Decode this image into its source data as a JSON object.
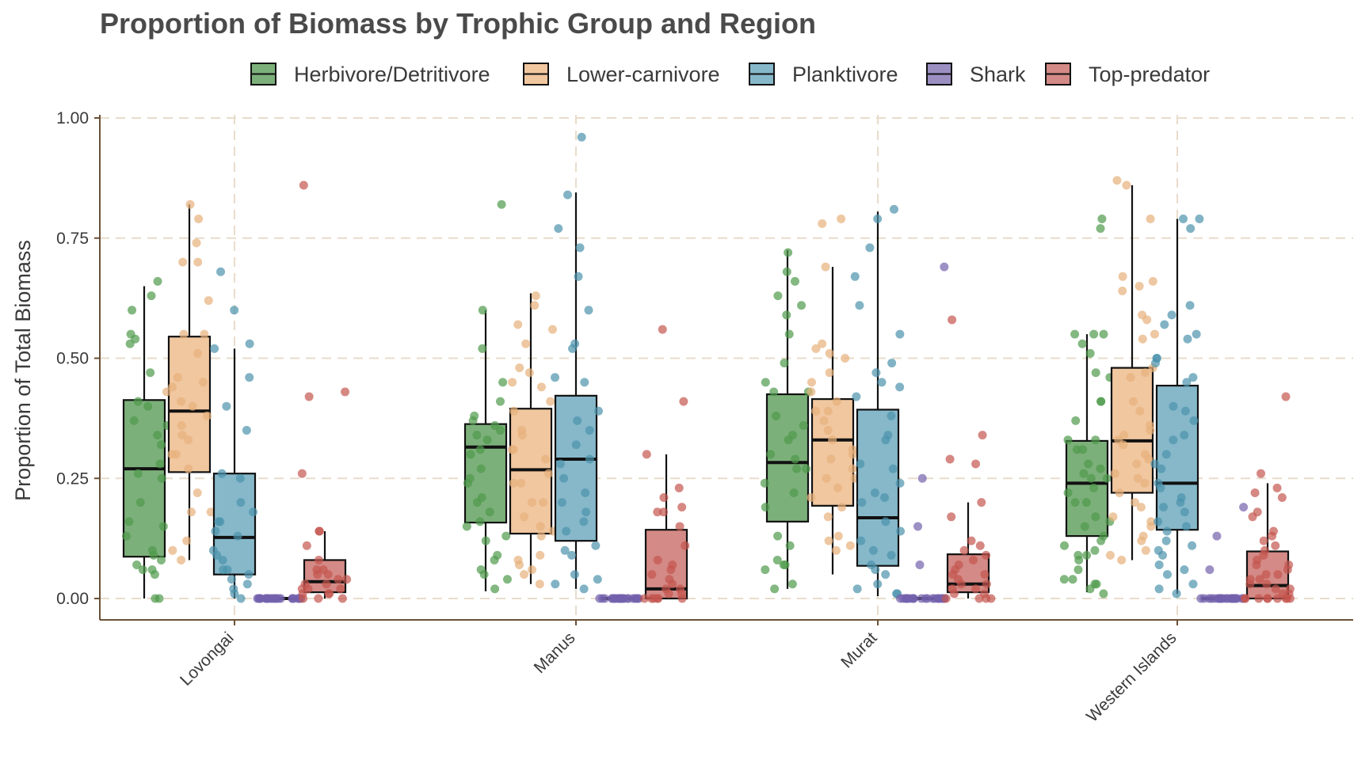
{
  "chart_data": {
    "type": "box",
    "title": "Proportion of Biomass by Trophic Group and Region",
    "xlabel": "",
    "ylabel": "Proportion of Total Biomass",
    "ylim": [
      -0.045,
      1.0
    ],
    "y_ticks": [
      "0.00",
      "0.25",
      "0.50",
      "0.75",
      "1.00"
    ],
    "y_tick_values": [
      0,
      0.25,
      0.5,
      0.75,
      1.0
    ],
    "categories": [
      "Lovongai",
      "Manus",
      "Murat",
      "Western Islands"
    ],
    "grid": true,
    "legend_position": "top",
    "series": [
      {
        "name": "Herbivore/Detritivore",
        "color": "#7cb07a",
        "point_color": "#4f9a4b",
        "boxes": [
          {
            "lower": 0.0,
            "q1": 0.087,
            "median": 0.27,
            "q3": 0.413,
            "upper": 0.65
          },
          {
            "lower": 0.015,
            "q1": 0.158,
            "median": 0.315,
            "q3": 0.363,
            "upper": 0.6
          },
          {
            "lower": 0.02,
            "q1": 0.16,
            "median": 0.283,
            "q3": 0.425,
            "upper": 0.725
          },
          {
            "lower": 0.013,
            "q1": 0.13,
            "median": 0.24,
            "q3": 0.328,
            "upper": 0.55
          }
        ],
        "points": [
          [
            0.63,
            0.54,
            0.47,
            0.36,
            0.1,
            0.06,
            0.16,
            0.25,
            0.09,
            0.0,
            0.0,
            0.07,
            0.66,
            0.53,
            0.4,
            0.6,
            0.55,
            0.34,
            0.32,
            0.28,
            0.13,
            0.06,
            0.05,
            0.41,
            0.37,
            0.26,
            0.15,
            0.08,
            0.2
          ],
          [
            0.52,
            0.35,
            0.3,
            0.25,
            0.2,
            0.16,
            0.12,
            0.04,
            0.05,
            0.09,
            0.37,
            0.6,
            0.45,
            0.41,
            0.34,
            0.33,
            0.82,
            0.36,
            0.24,
            0.18,
            0.15,
            0.08,
            0.06,
            0.02,
            0.38,
            0.31,
            0.27,
            0.21,
            0.13
          ],
          [
            0.49,
            0.45,
            0.38,
            0.3,
            0.29,
            0.24,
            0.13,
            0.08,
            0.07,
            0.02,
            0.61,
            0.59,
            0.55,
            0.36,
            0.34,
            0.27,
            0.19,
            0.11,
            0.07,
            0.72,
            0.66,
            0.63,
            0.68,
            0.43,
            0.43,
            0.33,
            0.27,
            0.03,
            0.06,
            0.22
          ],
          [
            0.55,
            0.53,
            0.41,
            0.33,
            0.31,
            0.27,
            0.16,
            0.09,
            0.04,
            0.02,
            0.03,
            0.55,
            0.51,
            0.47,
            0.33,
            0.25,
            0.22,
            0.2,
            0.15,
            0.12,
            0.06,
            0.01,
            0.55,
            0.41,
            0.31,
            0.26,
            0.11,
            0.08,
            0.03,
            0.79,
            0.77,
            0.46,
            0.25,
            0.13,
            0.09,
            0.04,
            0.37,
            0.28,
            0.23,
            0.17,
            0.1,
            0.2
          ]
        ]
      },
      {
        "name": "Lower-carnivore",
        "color": "#f1c7a0",
        "point_color": "#e7b07b",
        "boxes": [
          {
            "lower": 0.08,
            "q1": 0.263,
            "median": 0.39,
            "q3": 0.545,
            "upper": 0.82
          },
          {
            "lower": 0.03,
            "q1": 0.135,
            "median": 0.268,
            "q3": 0.395,
            "upper": 0.635
          },
          {
            "lower": 0.05,
            "q1": 0.193,
            "median": 0.33,
            "q3": 0.415,
            "upper": 0.69
          },
          {
            "lower": 0.08,
            "q1": 0.22,
            "median": 0.328,
            "q3": 0.48,
            "upper": 0.86
          }
        ],
        "points": [
          [
            0.74,
            0.62,
            0.51,
            0.44,
            0.4,
            0.3,
            0.22,
            0.12,
            0.08,
            0.7,
            0.7,
            0.55,
            0.46,
            0.36,
            0.3,
            0.18,
            0.18,
            0.79,
            0.82,
            0.55,
            0.45,
            0.41,
            0.33,
            0.27,
            0.1,
            0.38,
            0.34,
            0.43
          ],
          [
            0.63,
            0.53,
            0.45,
            0.39,
            0.31,
            0.24,
            0.2,
            0.15,
            0.09,
            0.05,
            0.57,
            0.47,
            0.41,
            0.34,
            0.31,
            0.26,
            0.17,
            0.14,
            0.08,
            0.07,
            0.61,
            0.56,
            0.48,
            0.44,
            0.35,
            0.29,
            0.24,
            0.2,
            0.13,
            0.06,
            0.03
          ],
          [
            0.79,
            0.78,
            0.52,
            0.5,
            0.43,
            0.39,
            0.33,
            0.29,
            0.25,
            0.19,
            0.13,
            0.1,
            0.69,
            0.51,
            0.47,
            0.41,
            0.37,
            0.31,
            0.27,
            0.23,
            0.17,
            0.11,
            0.53,
            0.45,
            0.39,
            0.35,
            0.3,
            0.25,
            0.21,
            0.12
          ],
          [
            0.86,
            0.87,
            0.79,
            0.67,
            0.66,
            0.59,
            0.55,
            0.47,
            0.46,
            0.39,
            0.35,
            0.32,
            0.3,
            0.28,
            0.25,
            0.2,
            0.17,
            0.15,
            0.13,
            0.09,
            0.65,
            0.64,
            0.58,
            0.54,
            0.48,
            0.41,
            0.36,
            0.33,
            0.26,
            0.22,
            0.16,
            0.1,
            0.08,
            0.34,
            0.29,
            0.24,
            0.19,
            0.12
          ]
        ]
      },
      {
        "name": "Planktivore",
        "color": "#86b8ca",
        "point_color": "#4c93ad",
        "boxes": [
          {
            "lower": 0.0,
            "q1": 0.05,
            "median": 0.127,
            "q3": 0.26,
            "upper": 0.52
          },
          {
            "lower": 0.02,
            "q1": 0.12,
            "median": 0.29,
            "q3": 0.422,
            "upper": 0.845
          },
          {
            "lower": 0.005,
            "q1": 0.068,
            "median": 0.168,
            "q3": 0.393,
            "upper": 0.805
          },
          {
            "lower": 0.01,
            "q1": 0.143,
            "median": 0.24,
            "q3": 0.443,
            "upper": 0.79
          }
        ],
        "points": [
          [
            0.68,
            0.53,
            0.46,
            0.35,
            0.26,
            0.16,
            0.14,
            0.08,
            0.06,
            0.02,
            0.6,
            0.52,
            0.4,
            0.25,
            0.18,
            0.16,
            0.1,
            0.06,
            0.03,
            0.01,
            0.2,
            0.13,
            0.09,
            0.05,
            0.04,
            0.0
          ],
          [
            0.96,
            0.84,
            0.77,
            0.73,
            0.67,
            0.6,
            0.52,
            0.46,
            0.39,
            0.35,
            0.29,
            0.25,
            0.2,
            0.16,
            0.11,
            0.09,
            0.05,
            0.04,
            0.02,
            0.53,
            0.45,
            0.37,
            0.32,
            0.22,
            0.18,
            0.14,
            0.1,
            0.03,
            0.28
          ],
          [
            0.81,
            0.79,
            0.73,
            0.67,
            0.61,
            0.55,
            0.49,
            0.45,
            0.44,
            0.38,
            0.34,
            0.27,
            0.24,
            0.21,
            0.16,
            0.12,
            0.09,
            0.07,
            0.05,
            0.03,
            0.01,
            0.47,
            0.42,
            0.33,
            0.28,
            0.2,
            0.14,
            0.1,
            0.06,
            0.02,
            0.01,
            0.22
          ],
          [
            0.79,
            0.79,
            0.77,
            0.61,
            0.59,
            0.57,
            0.54,
            0.5,
            0.49,
            0.46,
            0.4,
            0.37,
            0.34,
            0.3,
            0.27,
            0.24,
            0.21,
            0.2,
            0.18,
            0.16,
            0.14,
            0.12,
            0.1,
            0.09,
            0.07,
            0.05,
            0.03,
            0.02,
            0.01,
            0.55,
            0.5,
            0.45,
            0.39,
            0.33,
            0.28,
            0.23,
            0.19,
            0.15,
            0.11,
            0.06
          ]
        ]
      },
      {
        "name": "Shark",
        "color": "#9b8fc2",
        "point_color": "#7461ad",
        "boxes": [
          {
            "lower": 0.0,
            "q1": 0.0,
            "median": 0.0,
            "q3": 0.0,
            "upper": 0.0
          },
          {
            "lower": 0.0,
            "q1": 0.0,
            "median": 0.0,
            "q3": 0.0,
            "upper": 0.0
          },
          {
            "lower": 0.0,
            "q1": 0.0,
            "median": 0.0,
            "q3": 0.0,
            "upper": 0.0
          },
          {
            "lower": 0.0,
            "q1": 0.0,
            "median": 0.0,
            "q3": 0.0,
            "upper": 0.0
          }
        ],
        "points": [
          [
            0,
            0,
            0,
            0,
            0,
            0,
            0,
            0,
            0,
            0,
            0,
            0,
            0,
            0,
            0,
            0,
            0,
            0,
            0,
            0,
            0,
            0,
            0,
            0
          ],
          [
            0,
            0,
            0,
            0,
            0,
            0,
            0,
            0,
            0,
            0,
            0,
            0,
            0,
            0,
            0,
            0,
            0,
            0,
            0,
            0,
            0,
            0,
            0,
            0
          ],
          [
            0.69,
            0.25,
            0.15,
            0.07,
            0,
            0,
            0,
            0,
            0,
            0,
            0,
            0,
            0,
            0,
            0,
            0,
            0,
            0,
            0,
            0,
            0,
            0,
            0,
            0,
            0,
            0
          ],
          [
            0.19,
            0.13,
            0.06,
            0,
            0,
            0,
            0,
            0,
            0,
            0,
            0,
            0,
            0,
            0,
            0,
            0,
            0,
            0,
            0,
            0,
            0,
            0,
            0,
            0,
            0,
            0,
            0
          ]
        ]
      },
      {
        "name": "Top-predator",
        "color": "#d48a86",
        "point_color": "#c4564f",
        "boxes": [
          {
            "lower": 0.0,
            "q1": 0.013,
            "median": 0.035,
            "q3": 0.08,
            "upper": 0.14
          },
          {
            "lower": 0.0,
            "q1": 0.0,
            "median": 0.02,
            "q3": 0.143,
            "upper": 0.3
          },
          {
            "lower": 0.0,
            "q1": 0.013,
            "median": 0.03,
            "q3": 0.092,
            "upper": 0.2
          },
          {
            "lower": 0.0,
            "q1": 0.0,
            "median": 0.027,
            "q3": 0.098,
            "upper": 0.24
          }
        ],
        "points": [
          [
            0.86,
            0.43,
            0.42,
            0.26,
            0.14,
            0.14,
            0.11,
            0.08,
            0.06,
            0.05,
            0.04,
            0.03,
            0.02,
            0.02,
            0.01,
            0.01,
            0.0,
            0.0,
            0.05,
            0.03,
            0.02,
            0.06,
            0.04,
            0.01,
            0.0
          ],
          [
            0.56,
            0.41,
            0.3,
            0.23,
            0.21,
            0.18,
            0.18,
            0.15,
            0.11,
            0.08,
            0.06,
            0.05,
            0.03,
            0.02,
            0.01,
            0.0,
            0.0,
            0.0,
            0.0,
            0.0,
            0.0,
            0.04,
            0.02,
            0.01,
            0.07,
            0.19
          ],
          [
            0.58,
            0.34,
            0.29,
            0.28,
            0.2,
            0.17,
            0.12,
            0.1,
            0.09,
            0.08,
            0.06,
            0.05,
            0.04,
            0.03,
            0.02,
            0.01,
            0.0,
            0.0,
            0.0,
            0.0,
            0.11,
            0.07,
            0.05,
            0.02,
            0.01,
            0.03
          ],
          [
            0.42,
            0.26,
            0.23,
            0.22,
            0.18,
            0.14,
            0.13,
            0.12,
            0.1,
            0.09,
            0.08,
            0.07,
            0.06,
            0.05,
            0.04,
            0.03,
            0.02,
            0.01,
            0.0,
            0.0,
            0.0,
            0.0,
            0.0,
            0.0,
            0.0,
            0.21,
            0.17,
            0.11,
            0.05,
            0.03,
            0.02,
            0.01,
            0.0,
            0.0,
            0.07,
            0.04
          ]
        ]
      }
    ]
  }
}
